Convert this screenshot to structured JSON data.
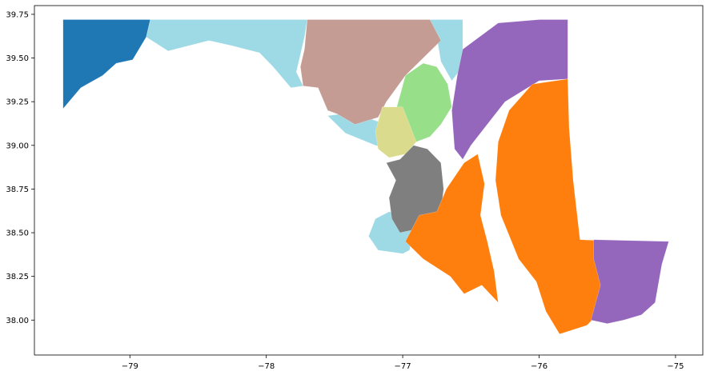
{
  "chart_data": {
    "type": "map",
    "x_ticks": [
      {
        "value": -79,
        "label": "−79"
      },
      {
        "value": -78,
        "label": "−78"
      },
      {
        "value": -77,
        "label": "−77"
      },
      {
        "value": -76,
        "label": "−76"
      },
      {
        "value": -75,
        "label": "−75"
      }
    ],
    "y_ticks": [
      {
        "value": 38.0,
        "label": "38.00"
      },
      {
        "value": 38.25,
        "label": "38.25"
      },
      {
        "value": 38.5,
        "label": "38.50"
      },
      {
        "value": 38.75,
        "label": "38.75"
      },
      {
        "value": 39.0,
        "label": "39.00"
      },
      {
        "value": 39.25,
        "label": "39.25"
      },
      {
        "value": 39.5,
        "label": "39.50"
      },
      {
        "value": 39.75,
        "label": "39.75"
      }
    ],
    "xlim": [
      -79.7,
      -74.8
    ],
    "ylim": [
      37.8,
      39.8
    ],
    "grid": false,
    "regions": [
      {
        "id": "blue",
        "color": "#1f77b4",
        "lonlat": [
          [
            -79.49,
            39.72
          ],
          [
            -78.85,
            39.72
          ],
          [
            -78.88,
            39.62
          ],
          [
            -78.98,
            39.49
          ],
          [
            -79.1,
            39.47
          ],
          [
            -79.2,
            39.4
          ],
          [
            -79.36,
            39.33
          ],
          [
            -79.49,
            39.21
          ]
        ]
      },
      {
        "id": "lightblue-west",
        "color": "#9edae5",
        "lonlat": [
          [
            -78.85,
            39.72
          ],
          [
            -77.7,
            39.72
          ],
          [
            -77.72,
            39.62
          ],
          [
            -77.75,
            39.52
          ],
          [
            -77.78,
            39.42
          ],
          [
            -77.73,
            39.34
          ],
          [
            -77.82,
            39.33
          ],
          [
            -77.95,
            39.45
          ],
          [
            -78.05,
            39.53
          ],
          [
            -78.25,
            39.57
          ],
          [
            -78.42,
            39.6
          ],
          [
            -78.72,
            39.54
          ],
          [
            -78.88,
            39.62
          ]
        ]
      },
      {
        "id": "lightblue-ne",
        "color": "#9edae5",
        "lonlat": [
          [
            -76.8,
            39.72
          ],
          [
            -76.56,
            39.72
          ],
          [
            -76.56,
            39.55
          ],
          [
            -76.59,
            39.42
          ],
          [
            -76.64,
            39.37
          ],
          [
            -76.72,
            39.48
          ],
          [
            -76.75,
            39.62
          ]
        ]
      },
      {
        "id": "lightblue-pg",
        "color": "#9edae5",
        "lonlat": [
          [
            -77.55,
            39.17
          ],
          [
            -77.42,
            39.07
          ],
          [
            -77.2,
            39.0
          ],
          [
            -77.1,
            38.98
          ],
          [
            -77.12,
            39.12
          ],
          [
            -77.3,
            39.17
          ],
          [
            -77.45,
            39.18
          ]
        ]
      },
      {
        "id": "lightblue-south",
        "color": "#9edae5",
        "lonlat": [
          [
            -77.1,
            38.62
          ],
          [
            -77.0,
            38.6
          ],
          [
            -76.92,
            38.52
          ],
          [
            -76.95,
            38.4
          ],
          [
            -77.0,
            38.38
          ],
          [
            -77.18,
            38.4
          ],
          [
            -77.25,
            38.48
          ],
          [
            -77.2,
            38.58
          ]
        ]
      },
      {
        "id": "brown",
        "color": "#c49c94",
        "lonlat": [
          [
            -77.7,
            39.72
          ],
          [
            -76.8,
            39.72
          ],
          [
            -76.72,
            39.6
          ],
          [
            -76.85,
            39.5
          ],
          [
            -76.98,
            39.4
          ],
          [
            -77.12,
            39.25
          ],
          [
            -77.18,
            39.16
          ],
          [
            -77.35,
            39.12
          ],
          [
            -77.48,
            39.18
          ],
          [
            -77.55,
            39.2
          ],
          [
            -77.62,
            39.33
          ],
          [
            -77.73,
            39.34
          ],
          [
            -77.75,
            39.45
          ],
          [
            -77.72,
            39.55
          ]
        ]
      },
      {
        "id": "green",
        "color": "#98df8a",
        "lonlat": [
          [
            -76.98,
            39.4
          ],
          [
            -76.85,
            39.47
          ],
          [
            -76.75,
            39.45
          ],
          [
            -76.67,
            39.35
          ],
          [
            -76.64,
            39.22
          ],
          [
            -76.72,
            39.12
          ],
          [
            -76.8,
            39.05
          ],
          [
            -76.9,
            39.02
          ],
          [
            -77.0,
            39.1
          ],
          [
            -77.05,
            39.2
          ]
        ]
      },
      {
        "id": "yellow",
        "color": "#dbdb8d",
        "lonlat": [
          [
            -77.15,
            39.22
          ],
          [
            -77.0,
            39.22
          ],
          [
            -76.95,
            39.12
          ],
          [
            -76.9,
            39.02
          ],
          [
            -76.98,
            38.95
          ],
          [
            -77.1,
            38.93
          ],
          [
            -77.18,
            38.98
          ],
          [
            -77.2,
            39.08
          ]
        ]
      },
      {
        "id": "gray",
        "color": "#7f7f7f",
        "lonlat": [
          [
            -77.02,
            38.92
          ],
          [
            -76.92,
            39.0
          ],
          [
            -76.82,
            38.98
          ],
          [
            -76.72,
            38.9
          ],
          [
            -76.7,
            38.75
          ],
          [
            -76.72,
            38.62
          ],
          [
            -76.8,
            38.52
          ],
          [
            -76.9,
            38.52
          ],
          [
            -77.02,
            38.5
          ],
          [
            -77.08,
            38.58
          ],
          [
            -77.1,
            38.7
          ],
          [
            -77.05,
            38.8
          ],
          [
            -77.12,
            38.9
          ]
        ]
      },
      {
        "id": "purple-north",
        "color": "#9467bd",
        "lonlat": [
          [
            -76.56,
            39.55
          ],
          [
            -76.3,
            39.7
          ],
          [
            -76.0,
            39.72
          ],
          [
            -75.79,
            39.72
          ],
          [
            -75.79,
            39.38
          ],
          [
            -76.0,
            39.37
          ],
          [
            -76.25,
            39.25
          ],
          [
            -76.4,
            39.1
          ],
          [
            -76.5,
            39.0
          ],
          [
            -76.56,
            38.92
          ],
          [
            -76.62,
            38.98
          ],
          [
            -76.64,
            39.2
          ],
          [
            -76.6,
            39.4
          ]
        ]
      },
      {
        "id": "orange-east",
        "color": "#ff7f0e",
        "lonlat": [
          [
            -75.79,
            39.38
          ],
          [
            -76.05,
            39.35
          ],
          [
            -76.22,
            39.2
          ],
          [
            -76.3,
            39.02
          ],
          [
            -76.32,
            38.8
          ],
          [
            -76.28,
            38.6
          ],
          [
            -76.15,
            38.35
          ],
          [
            -76.02,
            38.22
          ],
          [
            -75.95,
            38.05
          ],
          [
            -75.85,
            37.92
          ],
          [
            -75.65,
            37.97
          ],
          [
            -75.55,
            38.05
          ],
          [
            -75.45,
            38.2
          ],
          [
            -75.4,
            38.45
          ],
          [
            -75.7,
            38.46
          ],
          [
            -75.75,
            38.8
          ],
          [
            -75.78,
            39.1
          ]
        ]
      },
      {
        "id": "orange-west",
        "color": "#ff7f0e",
        "lonlat": [
          [
            -76.55,
            38.9
          ],
          [
            -76.45,
            38.95
          ],
          [
            -76.4,
            38.78
          ],
          [
            -76.43,
            38.6
          ],
          [
            -76.38,
            38.45
          ],
          [
            -76.33,
            38.28
          ],
          [
            -76.3,
            38.1
          ],
          [
            -76.42,
            38.2
          ],
          [
            -76.55,
            38.15
          ],
          [
            -76.65,
            38.25
          ],
          [
            -76.85,
            38.35
          ],
          [
            -76.98,
            38.45
          ],
          [
            -76.88,
            38.6
          ],
          [
            -76.75,
            38.62
          ],
          [
            -76.68,
            38.75
          ]
        ]
      },
      {
        "id": "purple-south",
        "color": "#9467bd",
        "lonlat": [
          [
            -75.6,
            38.46
          ],
          [
            -75.05,
            38.45
          ],
          [
            -75.1,
            38.32
          ],
          [
            -75.15,
            38.1
          ],
          [
            -75.25,
            38.03
          ],
          [
            -75.38,
            38.0
          ],
          [
            -75.5,
            37.98
          ],
          [
            -75.62,
            38.0
          ],
          [
            -75.55,
            38.2
          ],
          [
            -75.6,
            38.35
          ]
        ]
      }
    ]
  }
}
